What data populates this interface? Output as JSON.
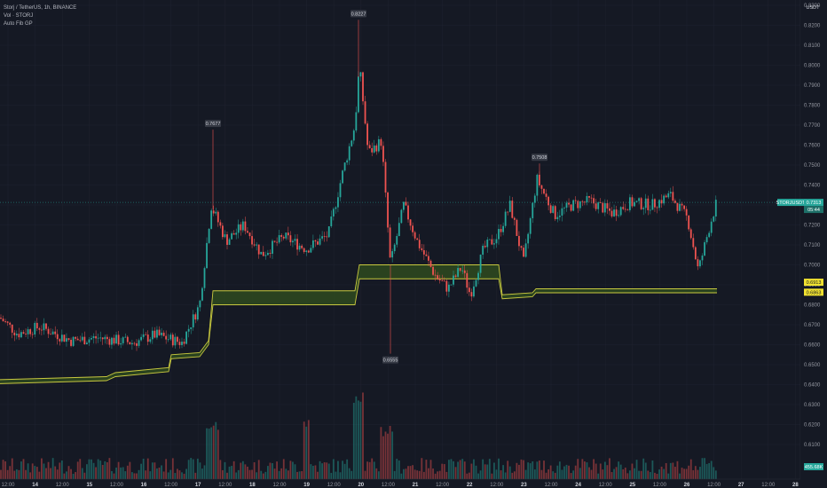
{
  "legend": {
    "title": "Storj / TetherUS, 1h, BINANCE",
    "vol": "Vol · STORJ",
    "indicator": "Auto Fib GP"
  },
  "currency_label": "USDT",
  "colors": {
    "background": "#151924",
    "grid": "#1f2330",
    "up": "#26a69a",
    "down": "#ef5350",
    "fib": "#c9c93f",
    "fib_fill": "#2e4a1e",
    "price_tag": "#26a69a",
    "fib_tag": "#f0e130"
  },
  "chart_data": {
    "type": "candlestick",
    "ylim": [
      0.6,
      0.83
    ],
    "y_ticks": [
      "0.8300",
      "0.8200",
      "0.8100",
      "0.8000",
      "0.7900",
      "0.7800",
      "0.7700",
      "0.7600",
      "0.7500",
      "0.7400",
      "0.7300",
      "0.7200",
      "0.7100",
      "0.7000",
      "0.6900",
      "0.6800",
      "0.6700",
      "0.6600",
      "0.6500",
      "0.6400",
      "0.6300",
      "0.6200",
      "0.6100"
    ],
    "x_ticks": [
      "12:00",
      "14",
      "12:00",
      "15",
      "12:00",
      "16",
      "12:00",
      "17",
      "12:00",
      "18",
      "12:00",
      "19",
      "12:00",
      "20",
      "12:00",
      "21",
      "12:00",
      "22",
      "12:00",
      "23",
      "12:00",
      "24",
      "12:00",
      "25",
      "12:00",
      "26",
      "12:00",
      "27",
      "12:00",
      "28"
    ],
    "price_path": [
      [
        0,
        0.6735
      ],
      [
        20,
        0.6655
      ],
      [
        45,
        0.669
      ],
      [
        80,
        0.662
      ],
      [
        110,
        0.6635
      ],
      [
        150,
        0.661
      ],
      [
        175,
        0.665
      ],
      [
        205,
        0.661
      ],
      [
        225,
        0.68
      ],
      [
        238,
        0.7297
      ],
      [
        255,
        0.712
      ],
      [
        275,
        0.72
      ],
      [
        295,
        0.705
      ],
      [
        320,
        0.714
      ],
      [
        345,
        0.708
      ],
      [
        370,
        0.715
      ],
      [
        385,
        0.744
      ],
      [
        400,
        0.77
      ],
      [
        405,
        0.8
      ],
      [
        415,
        0.756
      ],
      [
        430,
        0.762
      ],
      [
        440,
        0.7
      ],
      [
        455,
        0.73
      ],
      [
        470,
        0.712
      ],
      [
        490,
        0.695
      ],
      [
        505,
        0.688
      ],
      [
        520,
        0.699
      ],
      [
        530,
        0.685
      ],
      [
        545,
        0.708
      ],
      [
        560,
        0.714
      ],
      [
        575,
        0.73
      ],
      [
        590,
        0.701
      ],
      [
        605,
        0.743
      ],
      [
        625,
        0.725
      ],
      [
        645,
        0.73
      ],
      [
        665,
        0.732
      ],
      [
        690,
        0.726
      ],
      [
        710,
        0.731
      ],
      [
        735,
        0.73
      ],
      [
        755,
        0.735
      ],
      [
        775,
        0.723
      ],
      [
        787,
        0.697
      ],
      [
        800,
        0.72
      ],
      [
        808,
        0.732
      ]
    ],
    "wick_highs": [
      {
        "x": 240,
        "value": 0.7677,
        "label": "0.7677"
      },
      {
        "x": 404,
        "value": 0.8227,
        "label": "0.8227"
      },
      {
        "x": 608,
        "value": 0.7508,
        "label": "0.7508"
      }
    ],
    "wick_lows": [
      {
        "x": 440,
        "value": 0.6555,
        "label": "0.6555"
      }
    ],
    "fib_band": [
      [
        0,
        0.6425,
        0.6405
      ],
      [
        120,
        0.644,
        0.642
      ],
      [
        130,
        0.646,
        0.644
      ],
      [
        190,
        0.6485,
        0.6465
      ],
      [
        193,
        0.655,
        0.653
      ],
      [
        225,
        0.656,
        0.654
      ],
      [
        235,
        0.662,
        0.66
      ],
      [
        240,
        0.687,
        0.68
      ],
      [
        400,
        0.687,
        0.68
      ],
      [
        405,
        0.7,
        0.693
      ],
      [
        562,
        0.7,
        0.693
      ],
      [
        566,
        0.685,
        0.683
      ],
      [
        600,
        0.686,
        0.684
      ],
      [
        604,
        0.688,
        0.686
      ],
      [
        808,
        0.688,
        0.686
      ]
    ],
    "last_price": {
      "symbol": "STORJUSDT",
      "value": "0.7313",
      "countdown": "05:44"
    },
    "fib_tags": [
      "0.6913",
      "0.6863"
    ],
    "volume_tag": "455.68K"
  }
}
